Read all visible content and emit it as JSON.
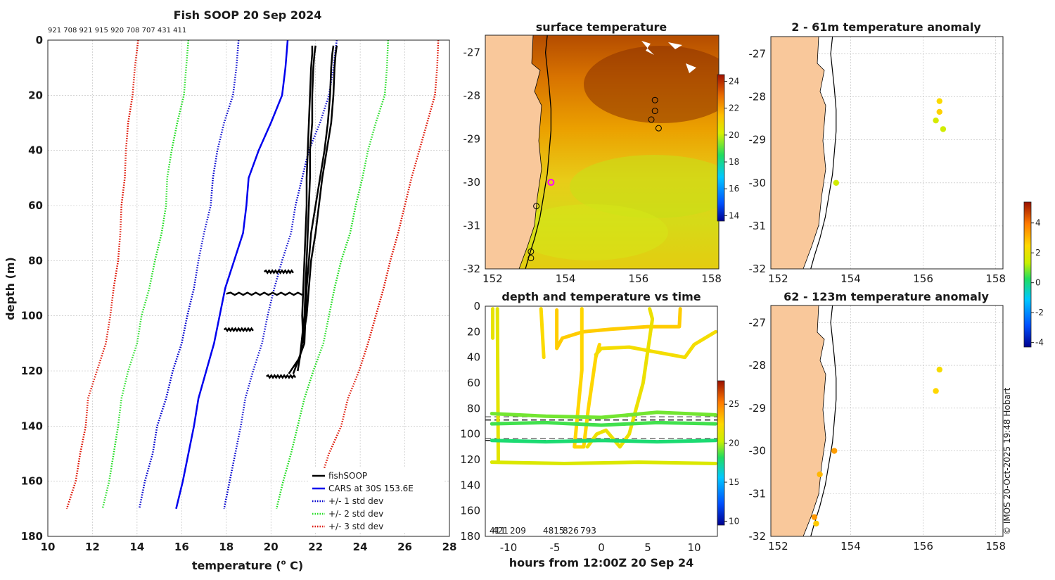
{
  "colors": {
    "fish": "#000000",
    "cars": "#0000ee",
    "std1": "#0000cc",
    "std2": "#22dd22",
    "std3": "#dd1100",
    "land": "#f9c89b",
    "grid": "#bbbbbb"
  },
  "profile": {
    "title": "Fish SOOP 20 Sep 2024",
    "id_strip": "921 708 921 915 920 708 707 431 411",
    "xlabel": "temperature (",
    "xlabel_sup": "o",
    "xlabel_end": " C)",
    "ylabel": "depth (m)",
    "legend": [
      "fishSOOP",
      "CARS at 30S 153.6E",
      "+/- 1 std dev",
      "+/- 2 std dev",
      "+/- 3 std dev"
    ]
  },
  "sst_map": {
    "title": "surface temperature",
    "colorbar_ticks": [
      "24",
      "22",
      "20",
      "18",
      "16",
      "14"
    ]
  },
  "anom_top": {
    "title": "2 - 61m temperature anomaly"
  },
  "anom_bottom": {
    "title": "62 - 123m temperature anomaly"
  },
  "anom_colorbar": {
    "ticks": [
      "4",
      "2",
      "0",
      "-2",
      "-4"
    ]
  },
  "timeplot": {
    "title": "depth and temperature vs time",
    "xlabel": "hours from 12:00Z 20 Sep 24",
    "ids": [
      "411",
      "421",
      "209",
      "4815",
      "826",
      "793"
    ],
    "colorbar_ticks": [
      "25",
      "20",
      "15",
      "10"
    ]
  },
  "credit": "© IMOS 20-Oct-2025 19:48 Hobart",
  "chart_data": [
    {
      "type": "line",
      "title": "Fish SOOP 20 Sep 2024",
      "xlabel": "temperature (o C)",
      "ylabel": "depth (m)",
      "xlim": [
        10,
        28
      ],
      "ylim": [
        180,
        0
      ],
      "xticks": [
        10,
        12,
        14,
        16,
        18,
        20,
        22,
        24,
        26,
        28
      ],
      "yticks": [
        0,
        20,
        40,
        60,
        80,
        100,
        120,
        140,
        160,
        180
      ],
      "depths": [
        0,
        10,
        20,
        30,
        40,
        50,
        60,
        70,
        80,
        90,
        100,
        110,
        120,
        130,
        140,
        150,
        160,
        170
      ],
      "series": [
        {
          "name": "CARS at 30S 153.6E",
          "style": "solid",
          "temps": [
            20.75,
            20.65,
            20.5,
            20.0,
            19.45,
            19.0,
            18.9,
            18.75,
            18.35,
            17.95,
            17.7,
            17.45,
            17.1,
            16.75,
            16.55,
            16.3,
            16.05,
            15.75
          ]
        },
        {
          "name": "+1 std dev",
          "style": "dotted",
          "temps": [
            22.95,
            22.8,
            22.6,
            22.2,
            21.7,
            21.4,
            21.1,
            20.9,
            20.5,
            20.15,
            19.85,
            19.6,
            19.2,
            18.85,
            18.65,
            18.4,
            18.15,
            17.9
          ]
        },
        {
          "name": "-1 std dev",
          "style": "dotted",
          "temps": [
            18.55,
            18.45,
            18.3,
            17.9,
            17.6,
            17.4,
            17.3,
            17.0,
            16.75,
            16.55,
            16.25,
            16.0,
            15.6,
            15.3,
            14.9,
            14.7,
            14.35,
            14.1
          ]
        },
        {
          "name": "+2 std dev",
          "style": "dotted",
          "temps": [
            25.25,
            25.2,
            25.1,
            24.7,
            24.35,
            24.1,
            23.8,
            23.55,
            23.15,
            22.85,
            22.6,
            22.35,
            21.9,
            21.5,
            21.2,
            20.9,
            20.55,
            20.25
          ]
        },
        {
          "name": "-2 std dev",
          "style": "dotted",
          "temps": [
            16.3,
            16.2,
            16.1,
            15.8,
            15.55,
            15.35,
            15.3,
            15.1,
            14.8,
            14.55,
            14.2,
            14.0,
            13.6,
            13.3,
            13.15,
            12.95,
            12.75,
            12.45
          ]
        },
        {
          "name": "+3 std dev",
          "style": "dotted",
          "temps": [
            27.5,
            27.45,
            27.35,
            27.0,
            26.65,
            26.3,
            26.0,
            25.7,
            25.35,
            25.05,
            24.7,
            24.35,
            23.95,
            23.45,
            23.15,
            22.6,
            22.2,
            21.9
          ]
        },
        {
          "name": "-3 std dev",
          "style": "dotted",
          "temps": [
            14.05,
            13.9,
            13.8,
            13.6,
            13.5,
            13.45,
            13.3,
            13.25,
            13.15,
            12.95,
            12.8,
            12.6,
            12.2,
            11.8,
            11.7,
            11.45,
            11.25,
            10.85
          ]
        }
      ],
      "fish_profiles": [
        {
          "depths": [
            2,
            5,
            10,
            20,
            30,
            40,
            50,
            60,
            70,
            80,
            90,
            100,
            110
          ],
          "temps": [
            21.85,
            21.85,
            21.8,
            21.75,
            21.7,
            21.65,
            21.6,
            21.6,
            21.55,
            21.5,
            21.45,
            21.4,
            21.45
          ]
        },
        {
          "depths": [
            2,
            5,
            10,
            20,
            30,
            40,
            50,
            60,
            70,
            80,
            90,
            100,
            115,
            121
          ],
          "temps": [
            22.0,
            21.95,
            21.9,
            21.85,
            21.85,
            21.75,
            21.75,
            21.7,
            21.65,
            21.6,
            21.55,
            21.5,
            21.3,
            20.8
          ]
        },
        {
          "depths": [
            2,
            5,
            10,
            20,
            30,
            40,
            50,
            60,
            70,
            80,
            90,
            100,
            110,
            121
          ],
          "temps": [
            22.8,
            22.75,
            22.7,
            22.65,
            22.55,
            22.4,
            22.2,
            22.0,
            21.8,
            21.7,
            21.6,
            21.55,
            21.5,
            21.0
          ]
        },
        {
          "depths": [
            2,
            5,
            10,
            20,
            30,
            40,
            50,
            60,
            70,
            80,
            90,
            100,
            120
          ],
          "temps": [
            22.95,
            22.9,
            22.85,
            22.8,
            22.7,
            22.5,
            22.3,
            22.15,
            22.0,
            21.8,
            21.7,
            21.6,
            21.2
          ]
        }
      ],
      "fish_scribbles": [
        {
          "depth": 84,
          "t0": 19.7,
          "t1": 21.0
        },
        {
          "depth": 92,
          "t0": 18.0,
          "t1": 21.4
        },
        {
          "depth": 105,
          "t0": 17.9,
          "t1": 19.2
        },
        {
          "depth": 122,
          "t0": 19.8,
          "t1": 21.1
        }
      ]
    },
    {
      "type": "heatmap",
      "title": "surface temperature",
      "xlim": [
        151.8,
        158.2
      ],
      "ylim": [
        -32,
        -26.6
      ],
      "xticks": [
        152,
        154,
        156,
        158
      ],
      "yticks": [
        -27,
        -28,
        -29,
        -30,
        -31,
        -32
      ],
      "colorbar": {
        "min": 13.6,
        "max": 24.5,
        "ticks": [
          24,
          22,
          20,
          18,
          16,
          14
        ]
      },
      "stations": [
        [
          156.45,
          -28.1
        ],
        [
          156.45,
          -28.35
        ],
        [
          156.35,
          -28.55
        ],
        [
          156.55,
          -28.75
        ],
        [
          153.2,
          -30.55
        ],
        [
          153.05,
          -31.6
        ],
        [
          153.05,
          -31.75
        ]
      ],
      "highlight": [
        153.6,
        -30.0
      ]
    },
    {
      "type": "scatter",
      "title": "2 - 61m temperature anomaly",
      "xlim": [
        151.8,
        158.2
      ],
      "ylim": [
        -32,
        -26.6
      ],
      "xticks": [
        152,
        154,
        156,
        158
      ],
      "yticks": [
        -27,
        -28,
        -29,
        -30,
        -31,
        -32
      ],
      "points": [
        {
          "lon": 156.45,
          "lat": -28.1,
          "anom": 2.4
        },
        {
          "lon": 156.45,
          "lat": -28.35,
          "anom": 2.6
        },
        {
          "lon": 156.35,
          "lat": -28.55,
          "anom": 1.6
        },
        {
          "lon": 156.55,
          "lat": -28.75,
          "anom": 1.5
        },
        {
          "lon": 153.6,
          "lat": -30.0,
          "anom": 1.5
        }
      ]
    },
    {
      "type": "scatter",
      "title": "62 - 123m temperature anomaly",
      "xlim": [
        151.8,
        158.2
      ],
      "ylim": [
        -32,
        -26.6
      ],
      "xticks": [
        152,
        154,
        156,
        158
      ],
      "yticks": [
        -27,
        -28,
        -29,
        -30,
        -31,
        -32
      ],
      "points": [
        {
          "lon": 156.45,
          "lat": -28.1,
          "anom": 2.3
        },
        {
          "lon": 156.35,
          "lat": -28.6,
          "anom": 2.5
        },
        {
          "lon": 153.55,
          "lat": -30.0,
          "anom": 3.4
        },
        {
          "lon": 153.15,
          "lat": -30.55,
          "anom": 3.0
        },
        {
          "lon": 153.0,
          "lat": -31.55,
          "anom": 3.5
        },
        {
          "lon": 153.05,
          "lat": -31.7,
          "anom": 2.7
        }
      ],
      "colorbar": {
        "min": -4.3,
        "max": 5.4,
        "ticks": [
          4,
          2,
          0,
          -2,
          -4
        ]
      }
    },
    {
      "type": "scatter",
      "title": "depth and temperature vs time",
      "xlabel": "hours from 12:00Z 20 Sep 24",
      "xlim": [
        -12.5,
        12.5
      ],
      "ylim": [
        180,
        0
      ],
      "xticks": [
        -10,
        -5,
        0,
        5,
        10
      ],
      "yticks": [
        0,
        20,
        40,
        60,
        80,
        100,
        120,
        140,
        160,
        180
      ],
      "ref_lines": [
        86.5,
        89,
        103.5,
        105
      ],
      "colorbar": {
        "min": 9.5,
        "max": 28,
        "ticks": [
          25,
          20,
          15,
          10
        ]
      },
      "tracks": [
        {
          "temp": 21.5,
          "pts": [
            [
              -11.7,
              2
            ],
            [
              -11.7,
              25
            ]
          ]
        },
        {
          "temp": 21.3,
          "pts": [
            [
              -11.2,
              2
            ],
            [
              -11.1,
              122
            ]
          ]
        },
        {
          "temp": 22.3,
          "pts": [
            [
              -6.5,
              2
            ],
            [
              -6.2,
              40
            ]
          ]
        },
        {
          "temp": 22.8,
          "pts": [
            [
              -4.8,
              3
            ],
            [
              -4.8,
              33
            ],
            [
              -4.2,
              25
            ],
            [
              -2,
              20
            ],
            [
              1,
              18
            ],
            [
              5,
              16
            ],
            [
              8.4,
              16
            ],
            [
              8.5,
              2
            ]
          ]
        },
        {
          "temp": 22.5,
          "pts": [
            [
              -2.1,
              2
            ],
            [
              -2.1,
              50
            ],
            [
              -2.5,
              80
            ],
            [
              -2.9,
              110
            ],
            [
              -1.9,
              110
            ],
            [
              -1.4,
              80
            ],
            [
              -0.6,
              40
            ],
            [
              -0.2,
              30
            ]
          ]
        },
        {
          "temp": 22.0,
          "pts": [
            [
              -0.6,
              38
            ],
            [
              0,
              33
            ],
            [
              3,
              32
            ],
            [
              6,
              36
            ],
            [
              9,
              40
            ],
            [
              10,
              30
            ],
            [
              12.3,
              20
            ]
          ]
        },
        {
          "temp": 21.7,
          "pts": [
            [
              -1.5,
              110
            ],
            [
              -0.5,
              100
            ],
            [
              0.5,
              97
            ],
            [
              2,
              110
            ],
            [
              3,
              100
            ],
            [
              4.5,
              60
            ],
            [
              5.5,
              10
            ],
            [
              5.2,
              2
            ]
          ]
        },
        {
          "temp": 19.2,
          "pts": [
            [
              -11.8,
              84
            ],
            [
              -6,
              86
            ],
            [
              0,
              87
            ],
            [
              6,
              83
            ],
            [
              12.3,
              85
            ]
          ]
        },
        {
          "temp": 18.6,
          "pts": [
            [
              -11.8,
              92
            ],
            [
              -6,
              91
            ],
            [
              0,
              93
            ],
            [
              6,
              91
            ],
            [
              12.3,
              92
            ]
          ]
        },
        {
          "temp": 17.9,
          "pts": [
            [
              -11.8,
              105
            ],
            [
              -6,
              106
            ],
            [
              0,
              105
            ],
            [
              6,
              106
            ],
            [
              12.3,
              105
            ]
          ]
        },
        {
          "temp": 21.0,
          "pts": [
            [
              -11.8,
              122
            ],
            [
              -4,
              123
            ],
            [
              4,
              122
            ],
            [
              12.3,
              123
            ]
          ]
        }
      ]
    }
  ]
}
